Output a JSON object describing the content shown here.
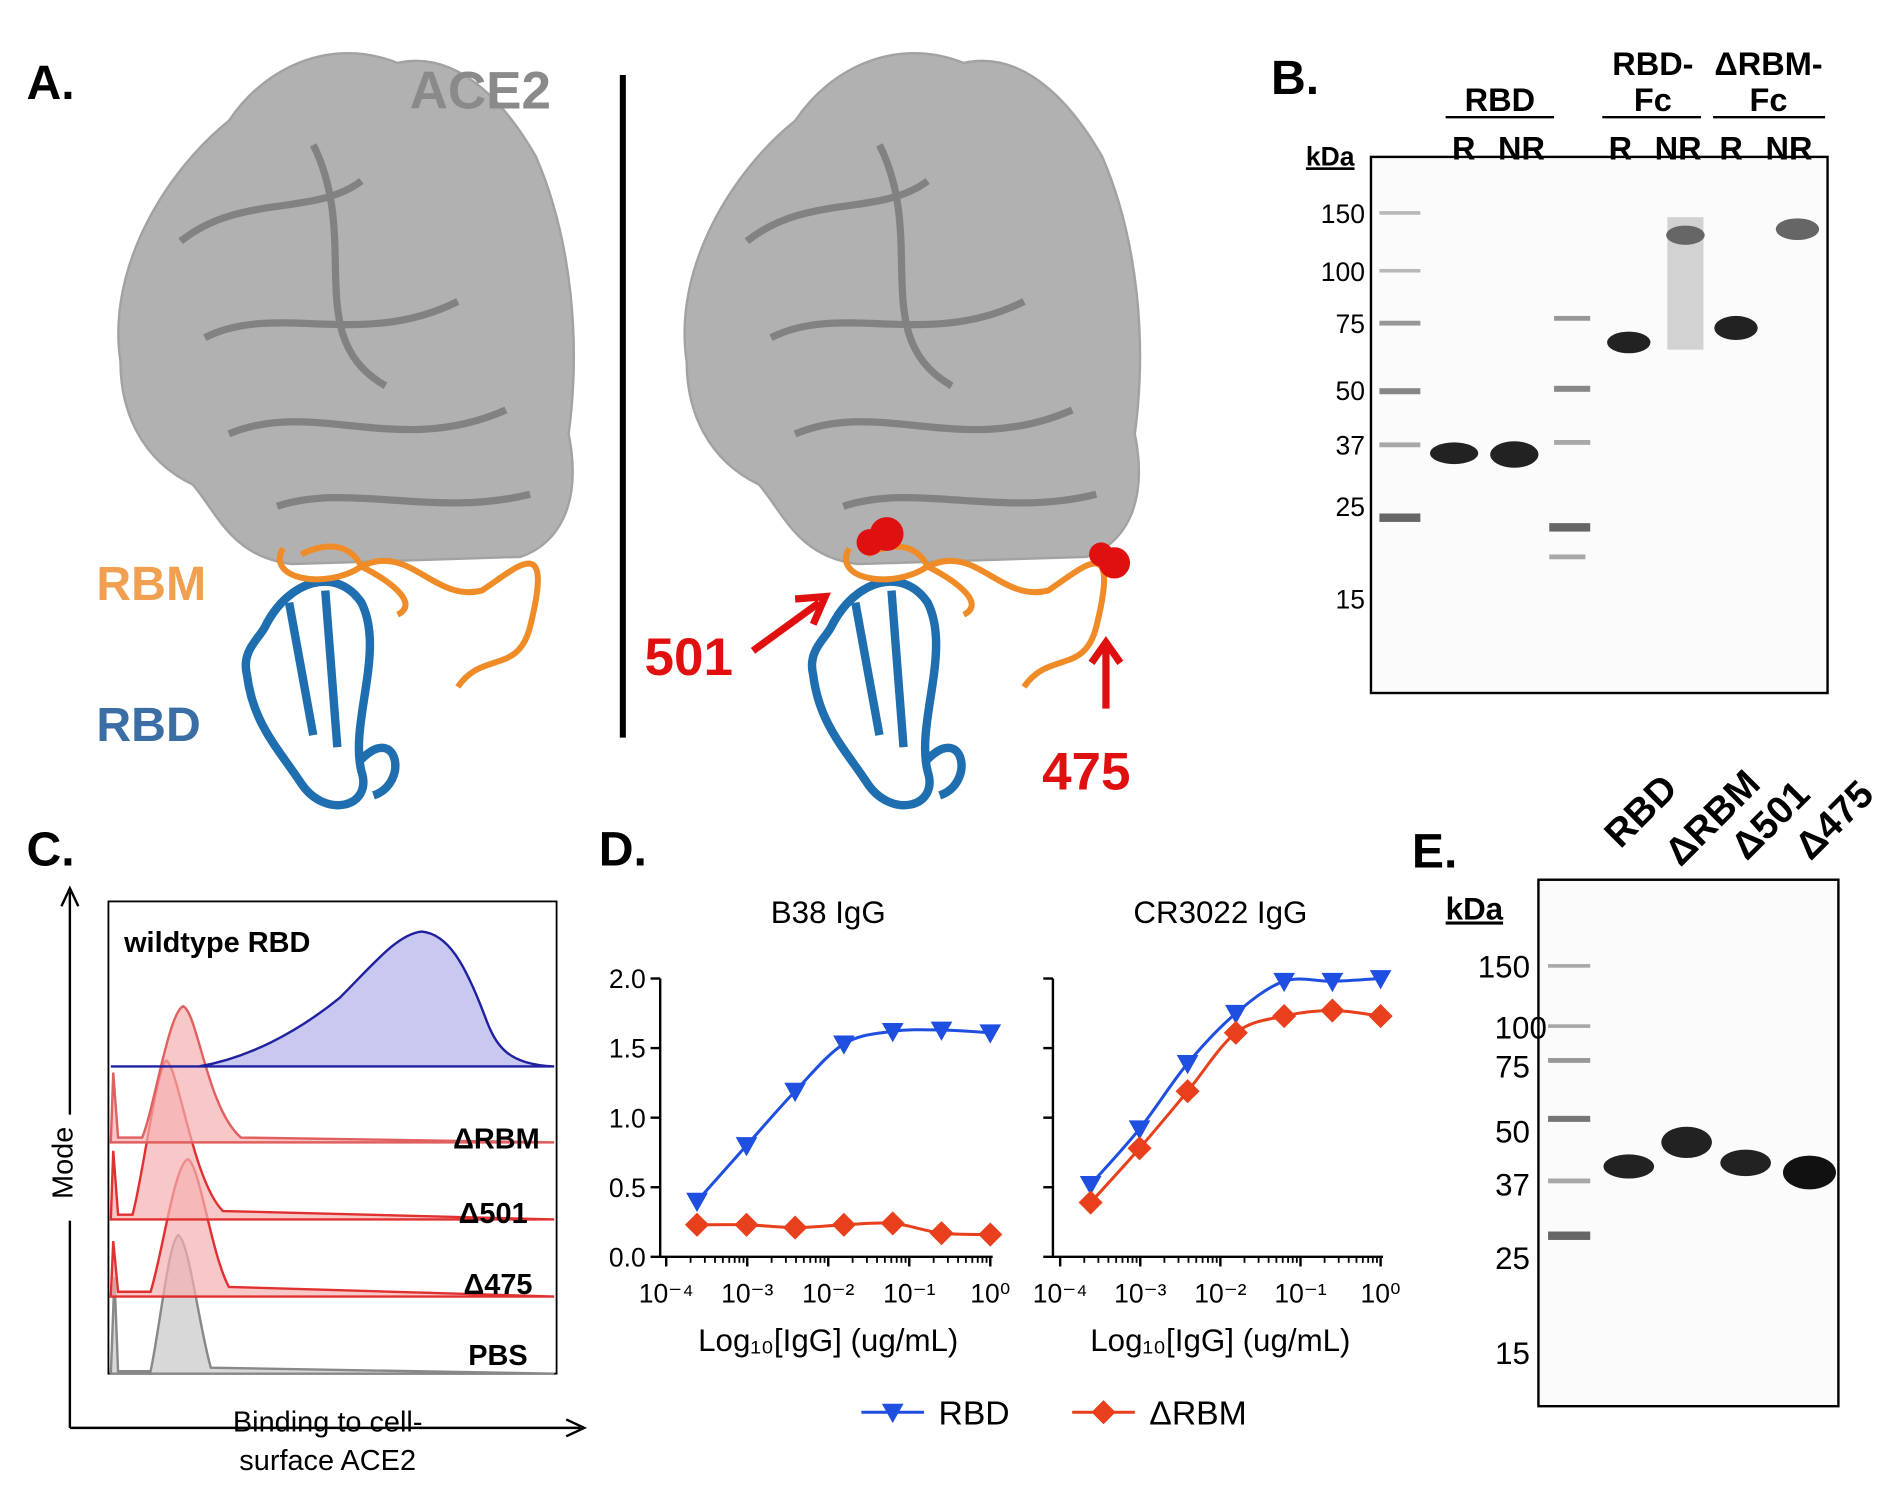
{
  "panel_a": {
    "label": "A.",
    "ace2": "ACE2",
    "rbm": "RBM",
    "rbd": "RBD",
    "site_501": "501",
    "site_475": "475"
  },
  "panel_b": {
    "label": "B.",
    "groups": [
      [
        "RBD"
      ],
      [
        "RBD-",
        "Fc"
      ],
      [
        "ΔRBM-",
        "Fc"
      ]
    ],
    "conditions": [
      "R",
      "NR",
      "R",
      "NR",
      "R",
      "NR"
    ],
    "unit": "kDa",
    "markers": [
      "150",
      "100",
      "75",
      "50",
      "37",
      "25",
      "15"
    ]
  },
  "panel_c": {
    "label": "C.",
    "y_label": "Mode",
    "x_label": [
      "Binding to cell-",
      "surface ACE2"
    ],
    "samples": [
      "wildtype RBD",
      "ΔRBM",
      "Δ501",
      "Δ475",
      "PBS"
    ]
  },
  "panel_d": {
    "label": "D."
  },
  "chart_data": [
    {
      "type": "line",
      "title": "B38 IgG",
      "x_label": "Log₁₀[IgG] (ug/mL)",
      "log_x": true,
      "x": [
        0.00024,
        0.00098,
        0.0039,
        0.0156,
        0.0625,
        0.25,
        1
      ],
      "xlim": [
        0.0001,
        1
      ],
      "xticks": [
        {
          "value": 0.0001,
          "label": "10⁻⁴"
        },
        {
          "value": 0.001,
          "label": "10⁻³"
        },
        {
          "value": 0.01,
          "label": "10⁻²"
        },
        {
          "value": 0.1,
          "label": "10⁻¹"
        },
        {
          "value": 1,
          "label": "10⁰"
        }
      ],
      "ylim": [
        0,
        2
      ],
      "yticks": [
        {
          "value": 0,
          "label": "0.0"
        },
        {
          "value": 0.5,
          "label": "0.5"
        },
        {
          "value": 1,
          "label": "1.0"
        },
        {
          "value": 1.5,
          "label": "1.5"
        },
        {
          "value": 2,
          "label": "2.0"
        }
      ],
      "series": [
        {
          "name": "RBD",
          "color": "#1f4fe0",
          "marker": "triangle-down",
          "values": [
            0.4,
            0.8,
            1.19,
            1.53,
            1.62,
            1.63,
            1.61
          ]
        },
        {
          "name": "ΔRBM",
          "color": "#e8401c",
          "marker": "diamond",
          "values": [
            0.23,
            0.23,
            0.21,
            0.23,
            0.24,
            0.17,
            0.16
          ]
        }
      ]
    },
    {
      "type": "line",
      "title": "CR3022 IgG",
      "x_label": "Log₁₀[IgG] (ug/mL)",
      "log_x": true,
      "x": [
        0.00024,
        0.00098,
        0.0039,
        0.0156,
        0.0625,
        0.25,
        1
      ],
      "xlim": [
        0.0001,
        1
      ],
      "xticks": [
        {
          "value": 0.0001,
          "label": "10⁻⁴"
        },
        {
          "value": 0.001,
          "label": "10⁻³"
        },
        {
          "value": 0.01,
          "label": "10⁻²"
        },
        {
          "value": 0.1,
          "label": "10⁻¹"
        },
        {
          "value": 1,
          "label": "10⁰"
        }
      ],
      "ylim": [
        0,
        2
      ],
      "yticks": [
        0,
        0.5,
        1,
        1.5,
        2
      ],
      "show_ytick_labels": false,
      "series": [
        {
          "color": "#1f4fe0",
          "marker": "triangle-down",
          "values": [
            0.52,
            0.92,
            1.39,
            1.75,
            1.98,
            1.98,
            2.0
          ]
        },
        {
          "color": "#e8401c",
          "marker": "diamond",
          "values": [
            0.39,
            0.78,
            1.19,
            1.61,
            1.73,
            1.77,
            1.73
          ]
        }
      ]
    }
  ],
  "panel_e": {
    "label": "E.",
    "lanes": [
      "RBD",
      "ΔRBM",
      "Δ501",
      "Δ475"
    ],
    "unit": "kDa",
    "markers": [
      "150",
      "100",
      "75",
      "50",
      "37",
      "25",
      "15"
    ]
  }
}
